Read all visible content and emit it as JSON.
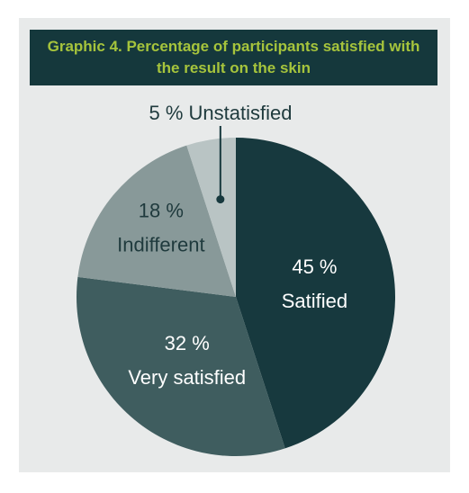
{
  "colors": {
    "panel_bg": "#e8eaea",
    "title_bg": "#15383c",
    "title_text": "#a6c43c"
  },
  "title": {
    "line1": "Graphic 4. Percentage of participants satisfied with",
    "line2": "the result on the skin"
  },
  "chart_data": {
    "type": "pie",
    "title": "Graphic 4. Percentage of participants satisfied with the result on the skin",
    "slices": [
      {
        "label": "Satified",
        "value": 45,
        "value_label": "45 %",
        "color": "#17393e",
        "text_color": "#ffffff"
      },
      {
        "label": "Very satisfied",
        "value": 32,
        "value_label": "32 %",
        "color": "#3f5d5f",
        "text_color": "#ffffff"
      },
      {
        "label": "Indifferent",
        "value": 18,
        "value_label": "18 %",
        "color": "#889999",
        "text_color": "#1f3a3d"
      },
      {
        "label": "Unstatisfied",
        "value": 5,
        "value_label": "5 %",
        "color": "#b9c4c4",
        "text_color": "#1f3a3d"
      }
    ],
    "callout": "5 % Unstatisfied",
    "start_angle": "top, clockwise"
  }
}
